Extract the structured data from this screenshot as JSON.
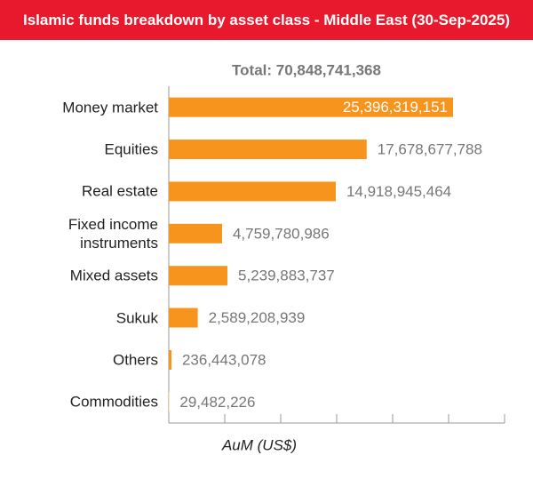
{
  "chart_data": {
    "type": "bar",
    "orientation": "horizontal",
    "title": "Islamic funds breakdown by asset class - Middle East (30-Sep-2025)",
    "subtitle": "Total: 70,848,741,368",
    "x_label": "AuM (US$)",
    "categories": [
      "Money market",
      "Equities",
      "Real estate",
      "Fixed income instruments",
      "Mixed assets",
      "Sukuk",
      "Others",
      "Commodities"
    ],
    "values": [
      25396319151,
      17678677788,
      14918945464,
      4759780986,
      5239883737,
      2589208939,
      236443078,
      29482226
    ],
    "value_labels": [
      "25,396,319,151",
      "17,678,677,788",
      "14,918,945,464",
      "4,759,780,986",
      "5,239,883,737",
      "2,589,208,939",
      "236,443,078",
      "29,482,226"
    ],
    "colors": [
      "#f7941d",
      "#f7941d",
      "#f7941d",
      "#f7941d",
      "#f7941d",
      "#f7941d",
      "#f7941d",
      "#fde3c0"
    ],
    "xlim": [
      0,
      30000000000
    ],
    "xticks": [
      0,
      5000000000,
      10000000000,
      15000000000,
      20000000000,
      25000000000,
      30000000000
    ]
  }
}
